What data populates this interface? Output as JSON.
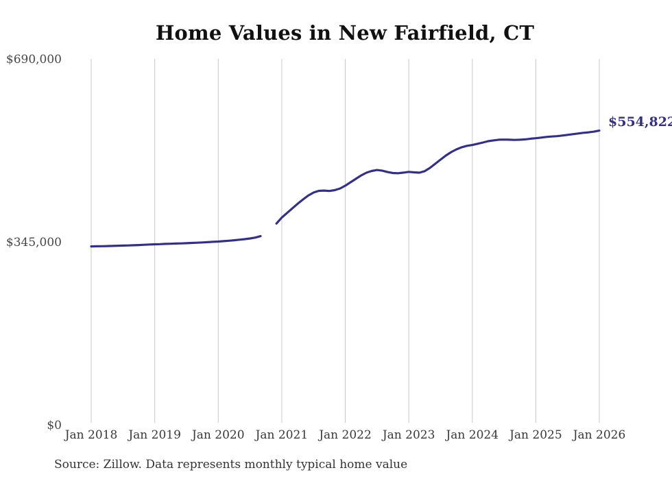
{
  "source_note": "Source: Zillow. Data represents monthly typical home value",
  "colors": {
    "line": "#35317f",
    "grid": "#c9c9c9",
    "title_text": "#111111",
    "axis_text": "#474747",
    "source_text": "#333333"
  },
  "chart_data": {
    "type": "line",
    "title": "Home Values in New Fairfield, CT",
    "xlabel": "",
    "ylabel": "",
    "ylim": [
      0,
      690000
    ],
    "y_ticks": [
      {
        "label": "$690,000",
        "value": 690000
      },
      {
        "label": "$345,000",
        "value": 345000
      },
      {
        "label": "$0",
        "value": 0
      }
    ],
    "x_ticks": [
      "Jan 2018",
      "Jan 2019",
      "Jan 2020",
      "Jan 2021",
      "Jan 2022",
      "Jan 2023",
      "Jan 2024",
      "Jan 2025",
      "Jan 2026"
    ],
    "grid": "vertical-yearly-only",
    "legend": "none",
    "annotation": {
      "text": "$554,822",
      "value": 554822,
      "at": "Jan 2026"
    },
    "data_gap_months": [
      "Oct 2020",
      "Nov 2020"
    ],
    "series": [
      {
        "name": "Monthly typical home value",
        "x_start": "Jan 2018",
        "x_end": "Jan 2026",
        "x_interval": "month",
        "values": [
          336500,
          336700,
          336900,
          337100,
          337400,
          337700,
          338000,
          338300,
          338700,
          339100,
          339600,
          340100,
          340500,
          340800,
          341200,
          341500,
          341900,
          342200,
          342600,
          343000,
          343500,
          344000,
          344500,
          345100,
          345700,
          346400,
          347200,
          348100,
          349100,
          350200,
          351400,
          353200,
          355800,
          null,
          null,
          379600,
          390900,
          399500,
          408200,
          416800,
          425000,
          432300,
          438000,
          441200,
          441800,
          441000,
          442500,
          445700,
          450900,
          457400,
          463900,
          470300,
          475500,
          478700,
          480600,
          479300,
          476700,
          474800,
          474500,
          475600,
          477000,
          476100,
          475500,
          478300,
          484500,
          492300,
          500100,
          507800,
          514300,
          519500,
          523400,
          526100,
          527700,
          530000,
          532400,
          534900,
          536400,
          537600,
          537900,
          537700,
          537300,
          537700,
          538300,
          539600,
          540500,
          541700,
          542900,
          543700,
          544400,
          545600,
          546800,
          548100,
          549400,
          550700,
          551600,
          552900,
          554822
        ]
      }
    ]
  }
}
